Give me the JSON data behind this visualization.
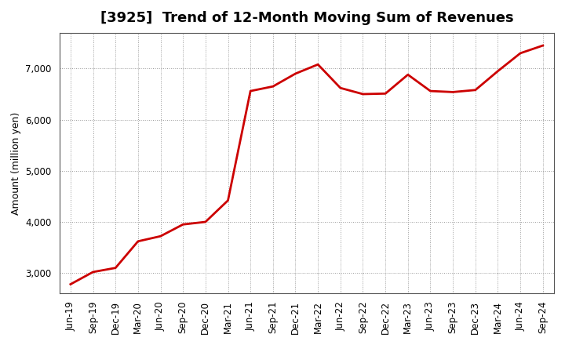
{
  "title": "[3925]  Trend of 12-Month Moving Sum of Revenues",
  "ylabel": "Amount (million yen)",
  "line_color": "#cc0000",
  "line_width": 2.0,
  "background_color": "#ffffff",
  "plot_bg_color": "#ffffff",
  "grid_color": "#999999",
  "dates": [
    "Jun-19",
    "Sep-19",
    "Dec-19",
    "Mar-20",
    "Jun-20",
    "Sep-20",
    "Dec-20",
    "Mar-21",
    "Jun-21",
    "Sep-21",
    "Dec-21",
    "Mar-22",
    "Jun-22",
    "Sep-22",
    "Dec-22",
    "Mar-23",
    "Jun-23",
    "Sep-23",
    "Dec-23",
    "Mar-24",
    "Jun-24",
    "Sep-24"
  ],
  "values": [
    2780,
    3020,
    3100,
    3620,
    3720,
    3950,
    4000,
    4420,
    6560,
    6650,
    6900,
    7080,
    6620,
    6500,
    6510,
    6880,
    6560,
    6540,
    6580,
    6950,
    7300,
    7450
  ],
  "yticks": [
    3000,
    4000,
    5000,
    6000,
    7000
  ],
  "ylim": [
    2600,
    7700
  ],
  "title_fontsize": 13,
  "title_fontweight": "bold",
  "ylabel_fontsize": 9,
  "tick_fontsize": 8.5
}
